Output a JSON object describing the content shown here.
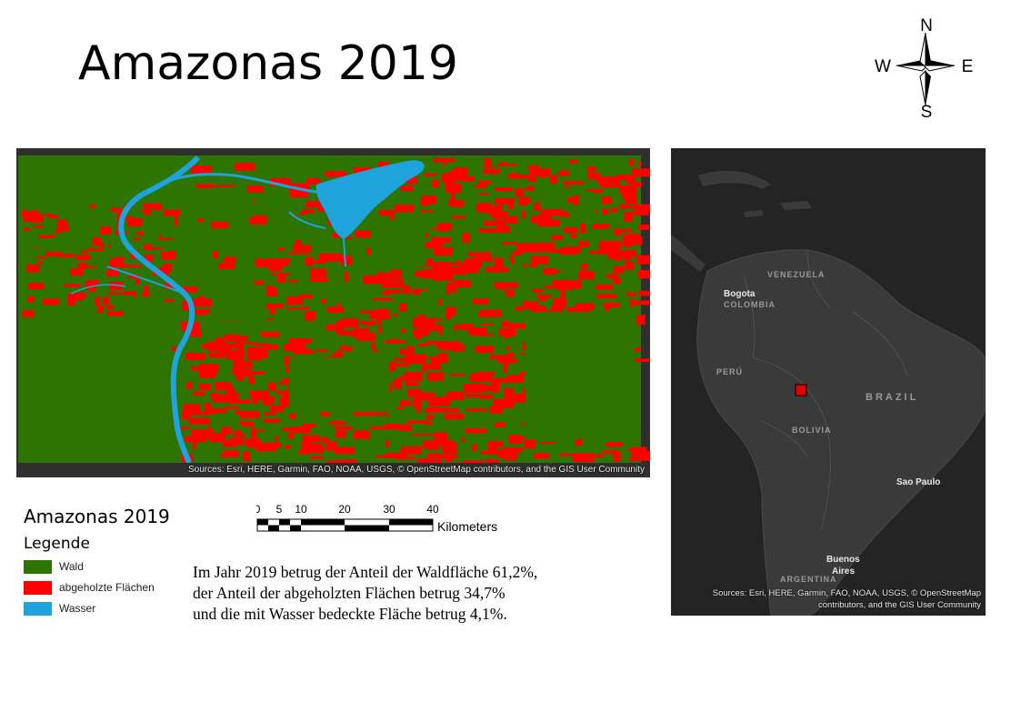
{
  "title": "Amazonas 2019",
  "compass": {
    "n": "N",
    "e": "E",
    "s": "S",
    "w": "W"
  },
  "colors": {
    "forest": "#2d7500",
    "deforested": "#ff0000",
    "water": "#1ea3dc",
    "basemap_land": "#3a3a3a",
    "basemap_water": "#222222",
    "marker": "#e00000"
  },
  "main_map": {
    "credit": "Sources: Esri, HERE, Garmin, FAO, NOAA, USGS, © OpenStreetMap contributors, and the GIS User Community"
  },
  "locator_map": {
    "labels": {
      "venezuela": "VENEZUELA",
      "bogota": "Bogota",
      "colombia": "COLOMBIA",
      "peru": "PERÚ",
      "brazil": "BRAZIL",
      "bolivia": "BOLIVIA",
      "sao_paulo": "Sao Paulo",
      "buenos_aires_1": "Buenos",
      "buenos_aires_2": "Aires",
      "argentina": "ARGENTINA"
    },
    "credit_line1": "Sources: Esri, HERE, Garmin, FAO, NOAA, USGS, © OpenStreetMap",
    "credit_line2": "contributors, and the GIS User Community"
  },
  "legend": {
    "title": "Amazonas 2019",
    "subtitle": "Legende",
    "items": [
      {
        "label": "Wald",
        "color": "#2d7500"
      },
      {
        "label": "abgeholzte Flächen",
        "color": "#ff0000"
      },
      {
        "label": "Wasser",
        "color": "#1ea3dc"
      }
    ]
  },
  "scalebar": {
    "ticks": [
      "0",
      "5",
      "10",
      "20",
      "30",
      "40"
    ],
    "unit": "Kilometers"
  },
  "summary": {
    "line1": "Im Jahr 2019 betrug der Anteil der Waldfläche 61,2%,",
    "line2": "der Anteil der abgeholzten Flächen betrug 34,7%",
    "line3": "und die mit Wasser bedeckte Fläche betrug 4,1%."
  }
}
